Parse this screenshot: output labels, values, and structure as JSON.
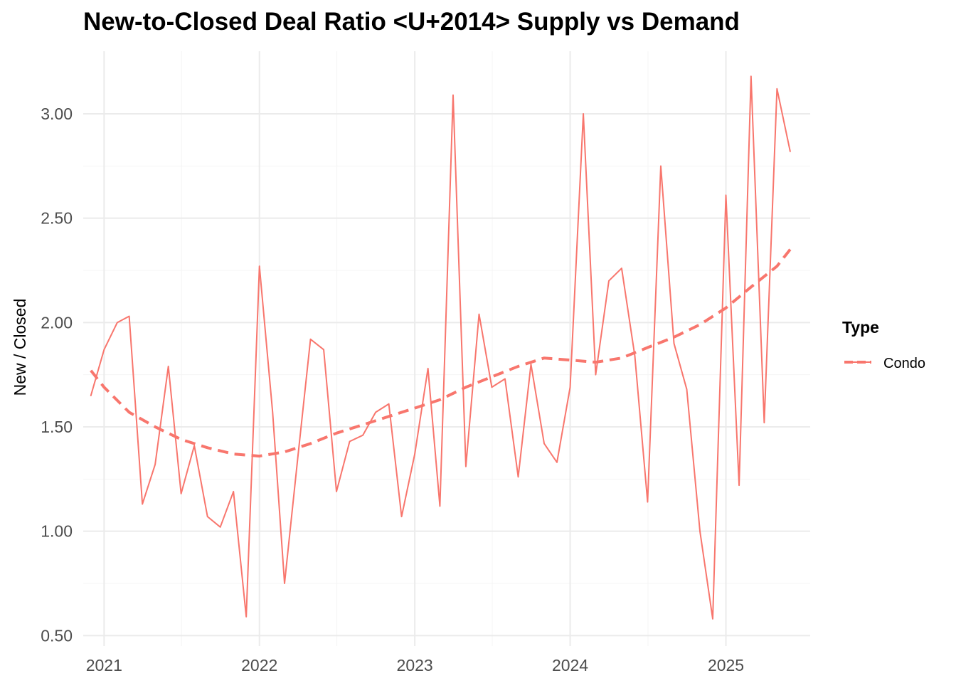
{
  "chart_data": {
    "type": "line",
    "title": "New-to-Closed Deal Ratio <U+2014> Supply vs Demand",
    "xlabel": "",
    "ylabel": "New / Closed",
    "xlim": [
      "2020-11-13",
      "2025-07-18"
    ],
    "ylim": [
      0.45,
      3.3
    ],
    "x_ticks": [
      "2021",
      "2022",
      "2023",
      "2024",
      "2025"
    ],
    "x_tick_dates": [
      "2021-01-01",
      "2022-01-01",
      "2023-01-01",
      "2024-01-01",
      "2025-01-01"
    ],
    "y_ticks": [
      0.5,
      1.0,
      1.5,
      2.0,
      2.5,
      3.0
    ],
    "y_tick_labels": [
      "0.50",
      "1.00",
      "1.50",
      "2.00",
      "2.50",
      "3.00"
    ],
    "grid": true,
    "legend": {
      "title": "Type",
      "position": "right"
    },
    "series": [
      {
        "name": "Condo",
        "color": "#f8766d",
        "style": "solid",
        "x": [
          "2020-12-01",
          "2021-01-01",
          "2021-02-01",
          "2021-03-01",
          "2021-04-01",
          "2021-05-01",
          "2021-06-01",
          "2021-07-01",
          "2021-08-01",
          "2021-09-01",
          "2021-10-01",
          "2021-11-01",
          "2021-12-01",
          "2022-01-01",
          "2022-02-01",
          "2022-03-01",
          "2022-04-01",
          "2022-05-01",
          "2022-06-01",
          "2022-07-01",
          "2022-08-01",
          "2022-09-01",
          "2022-10-01",
          "2022-11-01",
          "2022-12-01",
          "2023-01-01",
          "2023-02-01",
          "2023-03-01",
          "2023-04-01",
          "2023-05-01",
          "2023-06-01",
          "2023-07-01",
          "2023-08-01",
          "2023-09-01",
          "2023-10-01",
          "2023-11-01",
          "2023-12-01",
          "2024-01-01",
          "2024-02-01",
          "2024-03-01",
          "2024-04-01",
          "2024-05-01",
          "2024-06-01",
          "2024-07-01",
          "2024-08-01",
          "2024-09-01",
          "2024-10-01",
          "2024-11-01",
          "2024-12-01",
          "2025-01-01",
          "2025-02-01",
          "2025-03-01",
          "2025-04-01",
          "2025-05-01",
          "2025-06-01"
        ],
        "y": [
          1.65,
          1.87,
          2.0,
          2.03,
          1.13,
          1.32,
          1.79,
          1.18,
          1.41,
          1.07,
          1.02,
          1.19,
          0.59,
          2.27,
          1.57,
          0.75,
          1.35,
          1.92,
          1.87,
          1.19,
          1.43,
          1.46,
          1.57,
          1.61,
          1.07,
          1.37,
          1.78,
          1.12,
          3.09,
          1.31,
          2.04,
          1.69,
          1.73,
          1.26,
          1.8,
          1.42,
          1.33,
          1.69,
          3.0,
          1.75,
          2.2,
          2.26,
          1.84,
          1.14,
          2.75,
          1.9,
          1.68,
          1.0,
          0.58,
          2.61,
          1.22,
          3.18,
          1.52,
          3.12,
          2.82
        ]
      },
      {
        "name": "",
        "role": "trend",
        "color": "#f8766d",
        "style": "dashed",
        "x": [
          "2020-12-01",
          "2021-01-01",
          "2021-03-01",
          "2021-05-01",
          "2021-07-01",
          "2021-09-01",
          "2021-11-01",
          "2022-01-01",
          "2022-03-01",
          "2022-05-01",
          "2022-07-01",
          "2022-09-01",
          "2022-11-01",
          "2023-01-01",
          "2023-03-01",
          "2023-05-01",
          "2023-07-01",
          "2023-09-01",
          "2023-11-01",
          "2024-01-01",
          "2024-03-01",
          "2024-05-01",
          "2024-07-01",
          "2024-09-01",
          "2024-11-01",
          "2025-01-01",
          "2025-03-01",
          "2025-05-01",
          "2025-06-01"
        ],
        "y": [
          1.77,
          1.69,
          1.57,
          1.5,
          1.44,
          1.4,
          1.37,
          1.36,
          1.38,
          1.42,
          1.47,
          1.51,
          1.55,
          1.59,
          1.63,
          1.69,
          1.74,
          1.79,
          1.83,
          1.82,
          1.81,
          1.83,
          1.88,
          1.93,
          1.99,
          2.07,
          2.17,
          2.27,
          2.35
        ]
      }
    ]
  }
}
